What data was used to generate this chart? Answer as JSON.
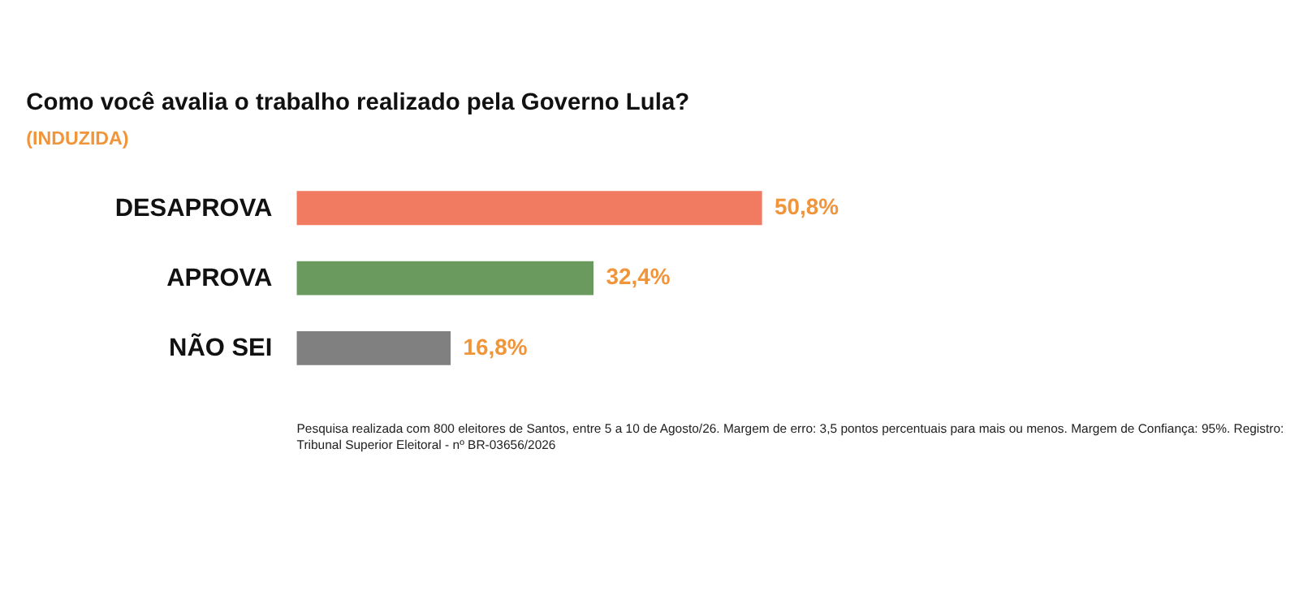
{
  "chart_data": {
    "type": "bar",
    "orientation": "horizontal",
    "title": "Como você avalia o trabalho realizado pela Governo Lula?",
    "subtitle": "(INDUZIDA)",
    "categories": [
      "DESAPROVA",
      "APROVA",
      "NÃO SEI"
    ],
    "values": [
      50.8,
      32.4,
      16.8
    ],
    "colors": [
      "#f07b61",
      "#6a9a5e",
      "#808080"
    ],
    "value_labels": [
      "50,8%",
      "32,4%",
      "16,8%"
    ],
    "annotations": [
      "Pesquisa realizada com 800 eleitores de Santos, entre 5 a 10 de Agosto/26. Margem de erro: 3,5 pontos percentuais para mais ou menos. Margem de Confiança: 95%. Registro: Tribunal Superior Eleitoral - nº BR-03656/2026"
    ]
  }
}
